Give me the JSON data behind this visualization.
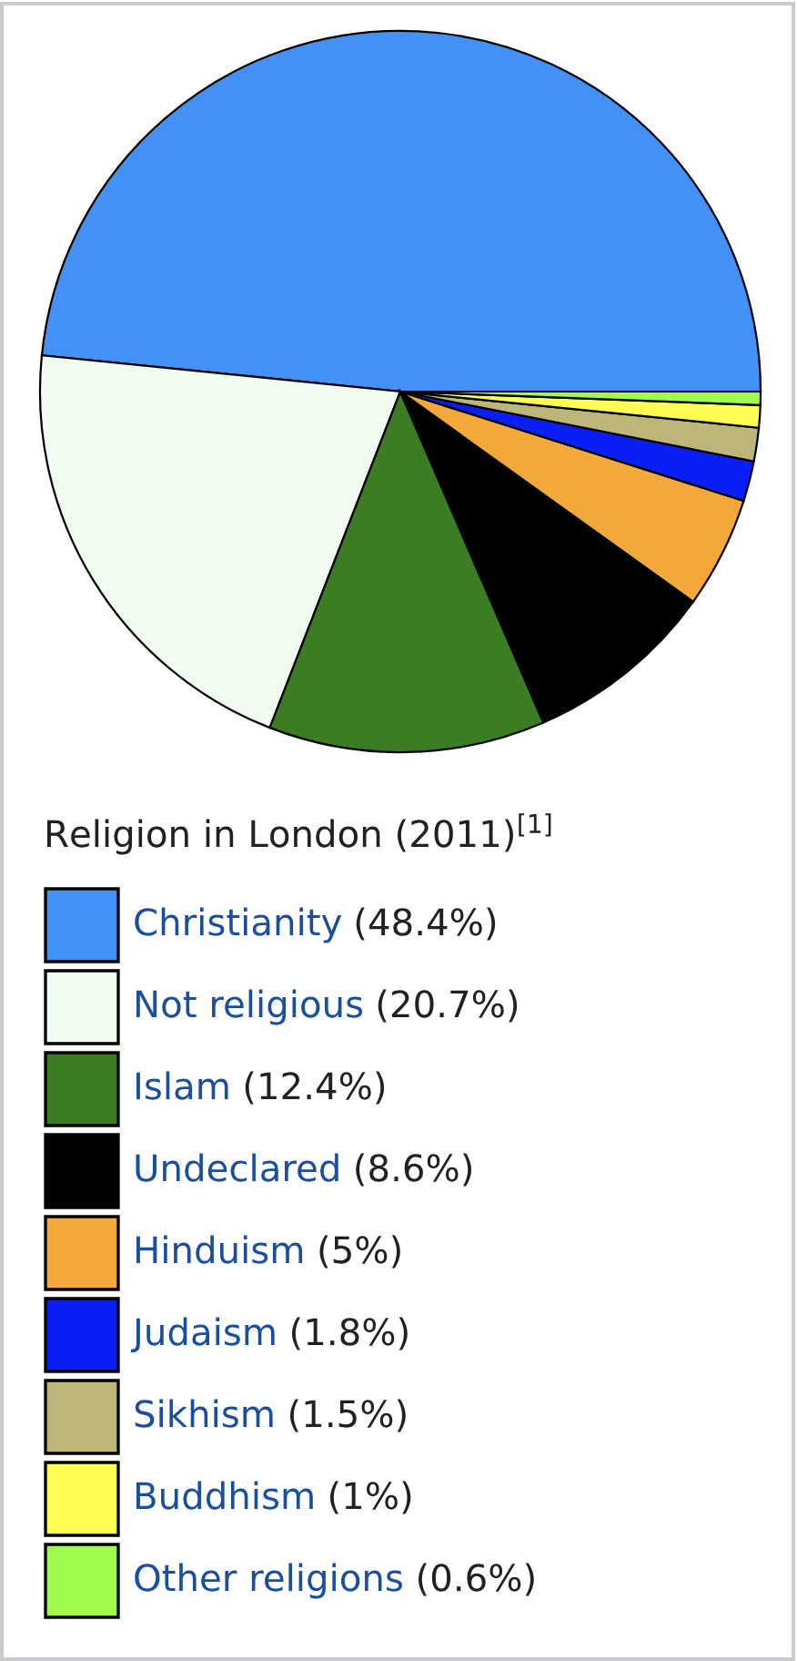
{
  "chart_data": {
    "type": "pie",
    "title": "Religion in London (2011)$^{[1]}$",
    "categories": [
      "Christianity",
      "Not religious",
      "Islam",
      "Undeclared",
      "Hinduism",
      "Judaism",
      "Sikhism",
      "Buddhism",
      "Other religions"
    ],
    "values": [
      48.4,
      20.7,
      12.4,
      8.6,
      5,
      1.8,
      1.5,
      1,
      0.6
    ],
    "value_labels": [
      "(48.4%)",
      "(20.7%)",
      "(12.4%)",
      "(8.6%)",
      "(5%)",
      "(1.8%)",
      "(1.5%)",
      "(1%)",
      "(0.6%)"
    ],
    "colors": [
      "#4391f5",
      "#f0fcf0",
      "#3a7d22",
      "#000000",
      "#f3a83b",
      "#0a1ef5",
      "#bdb67a",
      "#fdfd52",
      "#a0fa4c"
    ],
    "legend": "bottom"
  }
}
